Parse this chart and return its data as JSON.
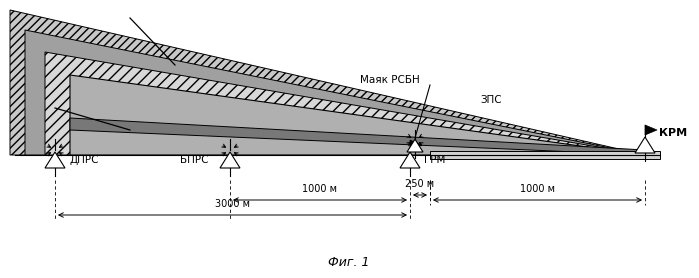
{
  "fig_width": 6.99,
  "fig_height": 2.78,
  "dpi": 100,
  "bg_color": "#ffffff",
  "title": "Фиг. 1",
  "labels": {
    "dprs": "ДПРС",
    "bprs": "БПРС",
    "grm": "ГРМ",
    "krm": "КРМ",
    "mayak": "Маяк РСБН",
    "zps": "ЗПС",
    "dist1": "1000 м",
    "dist2": "3000 м",
    "dist3": "250 м",
    "dist4": "1000 м"
  }
}
